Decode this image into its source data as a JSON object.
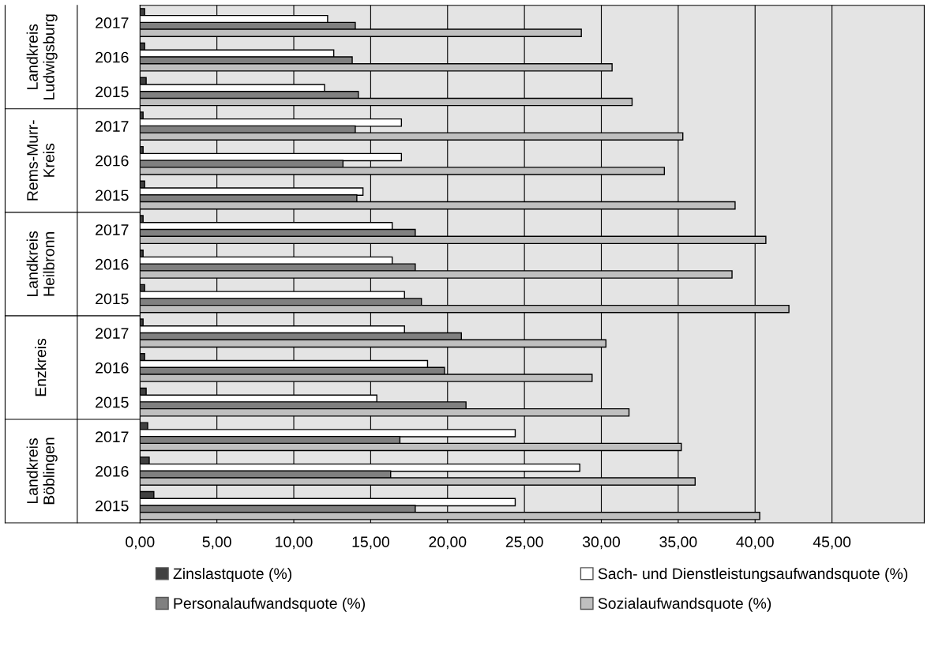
{
  "chart_data": {
    "type": "bar",
    "orientation": "horizontal",
    "categories": [
      "2017",
      "2016",
      "2015",
      "2017",
      "2016",
      "2015",
      "2017",
      "2016",
      "2015",
      "2017",
      "2016",
      "2015",
      "2017",
      "2016",
      "2015"
    ],
    "annotations": [
      "Landkreis\nLudwigsburg",
      "Rems-Murr-\nKreis",
      "Landkreis\nHeilbronn",
      "Enzkreis",
      "Landkreis\nBöblingen"
    ],
    "series": [
      {
        "name": "Zinslastquote (%)",
        "color": "#404040",
        "values": [
          0.3,
          0.3,
          0.4,
          0.2,
          0.2,
          0.3,
          0.2,
          0.2,
          0.3,
          0.2,
          0.3,
          0.4,
          0.5,
          0.6,
          0.9
        ]
      },
      {
        "name": "Sach- und Dienstleistungsaufwandsquote (%)",
        "color": "#ffffff",
        "values": [
          12.2,
          12.6,
          12.0,
          17.0,
          17.0,
          14.5,
          16.4,
          16.4,
          17.2,
          17.2,
          18.7,
          15.4,
          24.4,
          28.6,
          24.4
        ]
      },
      {
        "name": "Personalaufwandsquote (%)",
        "color": "#808080",
        "values": [
          14.0,
          13.8,
          14.2,
          14.0,
          13.2,
          14.1,
          17.9,
          17.9,
          18.3,
          20.9,
          19.8,
          21.2,
          16.9,
          16.3,
          17.9
        ]
      },
      {
        "name": "Sozialaufwandsquote (%)",
        "color": "#bfbfbf",
        "values": [
          28.7,
          30.7,
          32.0,
          35.3,
          34.1,
          38.7,
          40.7,
          38.5,
          42.2,
          30.3,
          29.4,
          31.8,
          35.2,
          36.1,
          40.3
        ]
      }
    ],
    "xlim": [
      0,
      51
    ],
    "xticks": [
      {
        "value": 0,
        "label": "0,00"
      },
      {
        "value": 5,
        "label": "5,00"
      },
      {
        "value": 10,
        "label": "10,00"
      },
      {
        "value": 15,
        "label": "15,00"
      },
      {
        "value": 20,
        "label": "20,00"
      },
      {
        "value": 25,
        "label": "25,00"
      },
      {
        "value": 30,
        "label": "30,00"
      },
      {
        "value": 35,
        "label": "35,00"
      },
      {
        "value": 40,
        "label": "40,00"
      },
      {
        "value": 45,
        "label": "45,00"
      }
    ],
    "grid": "x",
    "legend": "bottom"
  }
}
